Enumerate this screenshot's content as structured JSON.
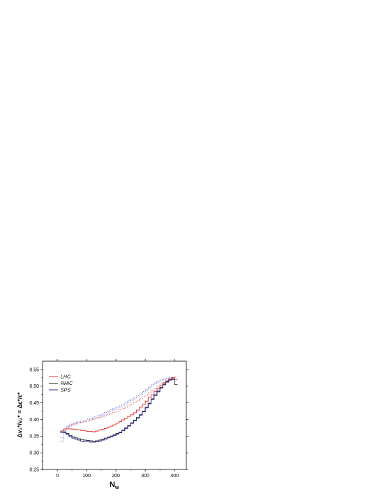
{
  "chart_data": {
    "type": "line",
    "title": "",
    "xlabel": "N_w",
    "xlabel_main": "N",
    "xlabel_sub": "w",
    "ylabel": "Δv₂*/v₂* = Δε*/ε*",
    "xlim": [
      -50,
      440
    ],
    "ylim": [
      0.25,
      0.575
    ],
    "xticks": [
      0,
      100,
      200,
      300,
      400
    ],
    "xtick_labels": [
      "0",
      "100",
      "200",
      "300",
      "400"
    ],
    "yticks": [
      0.25,
      0.3,
      0.35,
      0.4,
      0.45,
      0.5,
      0.55
    ],
    "ytick_labels": [
      "0.25",
      "0.30",
      "0.35",
      "0.40",
      "0.45",
      "0.50",
      "0.55"
    ],
    "grid": false,
    "legend_position": "top-left",
    "legend": [
      {
        "label": "LHC",
        "color": "#e23b3b"
      },
      {
        "label": "RHIC",
        "color": "#333333"
      },
      {
        "label": "SPS",
        "color": "#2b2b8f"
      }
    ],
    "series": [
      {
        "name": "LHC",
        "color": "#e23b3b",
        "style": "step-solid",
        "x": [
          15,
          25,
          35,
          45,
          55,
          65,
          75,
          85,
          95,
          105,
          115,
          125,
          135,
          145,
          155,
          165,
          175,
          185,
          195,
          205,
          215,
          225,
          235,
          245,
          255,
          265,
          275,
          285,
          295,
          305,
          315,
          325,
          335,
          345,
          355,
          365,
          375,
          385,
          395,
          405
        ],
        "y": [
          0.365,
          0.368,
          0.372,
          0.372,
          0.371,
          0.37,
          0.369,
          0.367,
          0.366,
          0.364,
          0.364,
          0.363,
          0.365,
          0.368,
          0.37,
          0.373,
          0.377,
          0.38,
          0.384,
          0.389,
          0.394,
          0.399,
          0.404,
          0.409,
          0.414,
          0.42,
          0.428,
          0.437,
          0.445,
          0.455,
          0.466,
          0.474,
          0.484,
          0.493,
          0.501,
          0.51,
          0.516,
          0.522,
          0.526,
          0.52
        ]
      },
      {
        "name": "RHIC",
        "color": "#333333",
        "style": "step-solid",
        "x": [
          15,
          25,
          35,
          45,
          55,
          65,
          75,
          85,
          95,
          105,
          115,
          125,
          135,
          145,
          155,
          165,
          175,
          185,
          195,
          205,
          215,
          225,
          235,
          245,
          255,
          265,
          275,
          285,
          295,
          305,
          315,
          325,
          335,
          345,
          355,
          365,
          375,
          385,
          395,
          405
        ],
        "y": [
          0.365,
          0.363,
          0.358,
          0.352,
          0.348,
          0.345,
          0.342,
          0.34,
          0.338,
          0.337,
          0.336,
          0.335,
          0.336,
          0.338,
          0.341,
          0.344,
          0.347,
          0.35,
          0.354,
          0.358,
          0.362,
          0.368,
          0.375,
          0.382,
          0.39,
          0.398,
          0.406,
          0.415,
          0.425,
          0.437,
          0.449,
          0.462,
          0.474,
          0.485,
          0.496,
          0.506,
          0.514,
          0.52,
          0.522,
          0.505
        ]
      },
      {
        "name": "SPS",
        "color": "#2b2b8f",
        "style": "step-solid",
        "x": [
          15,
          25,
          35,
          45,
          55,
          65,
          75,
          85,
          95,
          105,
          115,
          125,
          135,
          145,
          155,
          165,
          175,
          185,
          195,
          205,
          215,
          225,
          235,
          245,
          255,
          265,
          275,
          285,
          295,
          305,
          315,
          325,
          335,
          345,
          355,
          365,
          375,
          385,
          395
        ],
        "y": [
          0.36,
          0.36,
          0.355,
          0.349,
          0.344,
          0.341,
          0.338,
          0.335,
          0.334,
          0.333,
          0.332,
          0.332,
          0.333,
          0.335,
          0.338,
          0.341,
          0.345,
          0.348,
          0.352,
          0.356,
          0.36,
          0.366,
          0.373,
          0.38,
          0.388,
          0.396,
          0.404,
          0.413,
          0.423,
          0.435,
          0.447,
          0.46,
          0.472,
          0.483,
          0.494,
          0.504,
          0.512,
          0.518,
          0.52
        ]
      },
      {
        "name": "",
        "color": "#e23b3b",
        "style": "step-dotted",
        "x": [
          15,
          25,
          35,
          45,
          55,
          65,
          75,
          85,
          95,
          105,
          115,
          125,
          135,
          145,
          155,
          165,
          175,
          185,
          195,
          205,
          215,
          225,
          235,
          245,
          255,
          265,
          275,
          285,
          295,
          305,
          315,
          325,
          335,
          345,
          355,
          365,
          375,
          385,
          395,
          405
        ],
        "y": [
          0.365,
          0.372,
          0.378,
          0.382,
          0.385,
          0.388,
          0.39,
          0.392,
          0.393,
          0.395,
          0.397,
          0.4,
          0.403,
          0.406,
          0.409,
          0.412,
          0.415,
          0.418,
          0.421,
          0.425,
          0.429,
          0.433,
          0.437,
          0.441,
          0.446,
          0.451,
          0.456,
          0.462,
          0.468,
          0.474,
          0.481,
          0.488,
          0.494,
          0.5,
          0.506,
          0.511,
          0.516,
          0.52,
          0.524,
          0.527
        ]
      },
      {
        "name": "",
        "color": "#5a5ac8",
        "style": "step-dotted",
        "x": [
          15,
          25,
          35,
          45,
          55,
          65,
          75,
          85,
          95,
          105,
          115,
          125,
          135,
          145,
          155,
          165,
          175,
          185,
          195,
          205,
          215,
          225,
          235,
          245,
          255,
          265,
          275,
          285,
          295,
          305,
          315,
          325,
          335,
          345,
          355,
          365,
          375,
          385,
          395
        ],
        "y": [
          0.335,
          0.372,
          0.378,
          0.384,
          0.388,
          0.391,
          0.393,
          0.396,
          0.398,
          0.401,
          0.404,
          0.407,
          0.41,
          0.413,
          0.417,
          0.421,
          0.425,
          0.429,
          0.433,
          0.437,
          0.441,
          0.446,
          0.451,
          0.456,
          0.461,
          0.466,
          0.472,
          0.478,
          0.484,
          0.49,
          0.497,
          0.504,
          0.51,
          0.515,
          0.519,
          0.522,
          0.524,
          0.526,
          0.527
        ]
      },
      {
        "name": "",
        "color": "#8c8cd8",
        "style": "step-dotted",
        "x": [
          15,
          25,
          35,
          45,
          55,
          65,
          75,
          85,
          95,
          105,
          115,
          125,
          135,
          145,
          155,
          165,
          175,
          185,
          195,
          205,
          215,
          225,
          235,
          245,
          255,
          265,
          275,
          285,
          295,
          305,
          315,
          325,
          335,
          345,
          355,
          365,
          375,
          385
        ],
        "y": [
          0.345,
          0.368,
          0.374,
          0.379,
          0.383,
          0.386,
          0.389,
          0.391,
          0.394,
          0.397,
          0.4,
          0.403,
          0.406,
          0.409,
          0.412,
          0.416,
          0.42,
          0.424,
          0.428,
          0.432,
          0.436,
          0.441,
          0.446,
          0.451,
          0.456,
          0.462,
          0.468,
          0.474,
          0.48,
          0.487,
          0.494,
          0.501,
          0.507,
          0.512,
          0.516,
          0.52,
          0.523,
          0.525
        ]
      }
    ]
  }
}
